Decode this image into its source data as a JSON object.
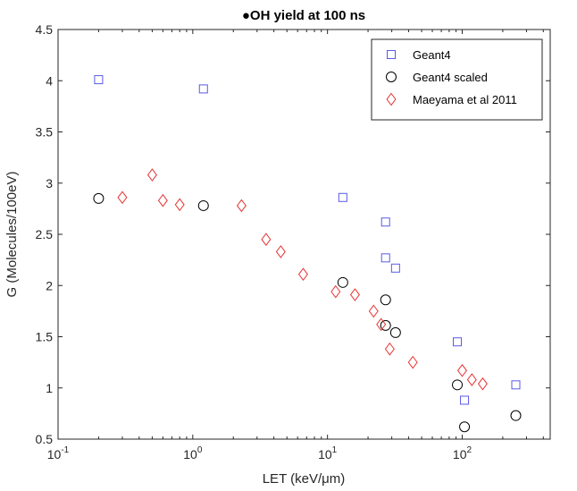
{
  "chart_data": {
    "type": "scatter",
    "title": "●OH yield at 100 ns",
    "xlabel": "LET (keV/μm)",
    "ylabel": "G (Molecules/100eV)",
    "xscale": "log",
    "xlim": [
      0.1,
      450
    ],
    "ylim": [
      0.5,
      4.5
    ],
    "x_ticks": [
      {
        "value": 0.1,
        "base": "10",
        "exp": "-1"
      },
      {
        "value": 1,
        "base": "10",
        "exp": "0"
      },
      {
        "value": 10,
        "base": "10",
        "exp": "1"
      },
      {
        "value": 100,
        "base": "10",
        "exp": "2"
      }
    ],
    "y_ticks": [
      {
        "value": 0.5,
        "label": "0.5"
      },
      {
        "value": 1,
        "label": "1"
      },
      {
        "value": 1.5,
        "label": "1.5"
      },
      {
        "value": 2,
        "label": "2"
      },
      {
        "value": 2.5,
        "label": "2.5"
      },
      {
        "value": 3,
        "label": "3"
      },
      {
        "value": 3.5,
        "label": "3.5"
      },
      {
        "value": 4,
        "label": "4"
      },
      {
        "value": 4.5,
        "label": "4.5"
      }
    ],
    "grid": false,
    "legend_position": "top-right",
    "series": [
      {
        "name": "Geant4",
        "marker": "square",
        "color": "#5a5ae6",
        "points": [
          {
            "x": 0.2,
            "y": 4.01
          },
          {
            "x": 1.2,
            "y": 3.92
          },
          {
            "x": 13,
            "y": 2.86
          },
          {
            "x": 27,
            "y": 2.62
          },
          {
            "x": 27,
            "y": 2.27
          },
          {
            "x": 32,
            "y": 2.17
          },
          {
            "x": 92,
            "y": 1.45
          },
          {
            "x": 104,
            "y": 0.88
          },
          {
            "x": 250,
            "y": 1.03
          }
        ]
      },
      {
        "name": "Geant4 scaled",
        "marker": "circle",
        "color": "#000000",
        "points": [
          {
            "x": 0.2,
            "y": 2.85
          },
          {
            "x": 1.2,
            "y": 2.78
          },
          {
            "x": 13,
            "y": 2.03
          },
          {
            "x": 27,
            "y": 1.86
          },
          {
            "x": 27,
            "y": 1.61
          },
          {
            "x": 32,
            "y": 1.54
          },
          {
            "x": 92,
            "y": 1.03
          },
          {
            "x": 104,
            "y": 0.62
          },
          {
            "x": 250,
            "y": 0.73
          }
        ]
      },
      {
        "name": "Maeyama et al 2011",
        "marker": "diamond",
        "color": "#e63232",
        "points": [
          {
            "x": 0.3,
            "y": 2.86
          },
          {
            "x": 0.5,
            "y": 3.08
          },
          {
            "x": 0.6,
            "y": 2.83
          },
          {
            "x": 0.8,
            "y": 2.79
          },
          {
            "x": 2.3,
            "y": 2.78
          },
          {
            "x": 3.5,
            "y": 2.45
          },
          {
            "x": 4.5,
            "y": 2.33
          },
          {
            "x": 6.6,
            "y": 2.11
          },
          {
            "x": 11.5,
            "y": 1.94
          },
          {
            "x": 16,
            "y": 1.91
          },
          {
            "x": 22,
            "y": 1.75
          },
          {
            "x": 25,
            "y": 1.62
          },
          {
            "x": 29,
            "y": 1.38
          },
          {
            "x": 43,
            "y": 1.25
          },
          {
            "x": 100,
            "y": 1.17
          },
          {
            "x": 118,
            "y": 1.08
          },
          {
            "x": 142,
            "y": 1.04
          }
        ]
      }
    ]
  }
}
